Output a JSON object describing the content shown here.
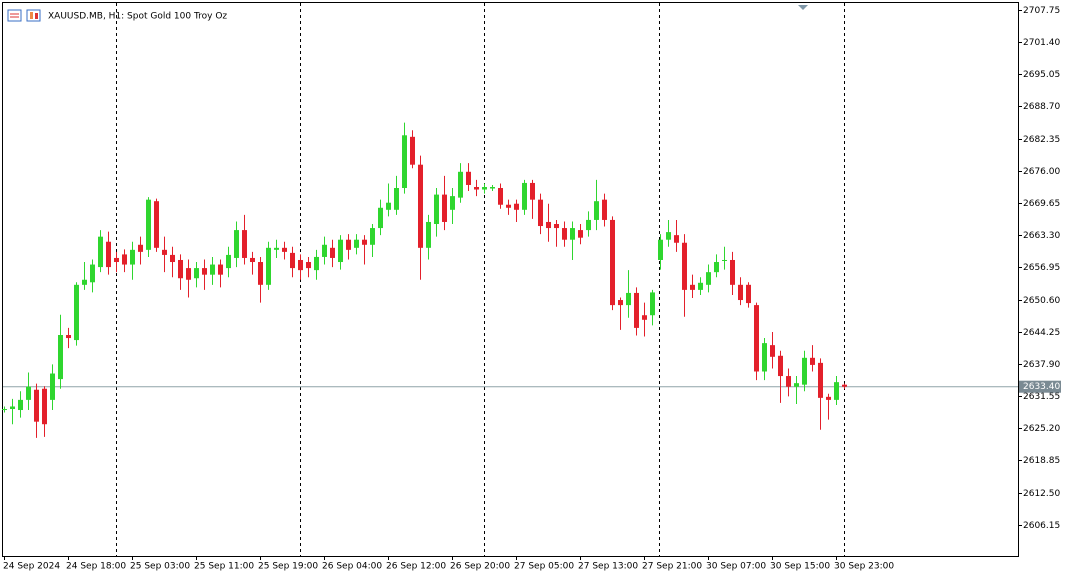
{
  "chart_data": {
    "type": "candlestick",
    "title": "XAUUSD.MB, H1:  Spot Gold 100 Troy Oz",
    "up_color": "#2fd62f",
    "down_color": "#e3202b",
    "grid": false,
    "ylim": [
      2600.0,
      2709.1
    ],
    "yticks": [
      2707.75,
      {
        "value": 2701.4,
        "label": "2701.40"
      },
      2695.05,
      {
        "value": 2688.7,
        "label": "2688.70"
      },
      2682.35,
      {
        "value": 2676.0,
        "label": "2676.00"
      },
      2669.65,
      {
        "value": 2663.3,
        "label": "2663.30"
      },
      2656.95,
      {
        "value": 2650.6,
        "label": "2650.60"
      },
      2644.25,
      {
        "value": 2637.9,
        "label": "2637.90"
      },
      2631.55,
      {
        "value": 2625.2,
        "label": "2625.20"
      },
      2618.85,
      {
        "value": 2612.5,
        "label": "2612.50"
      },
      2606.15
    ],
    "last_price": {
      "value": 2633.4,
      "label": "2633.40"
    },
    "categories": [
      "24 Sep 2024",
      null,
      null,
      null,
      null,
      null,
      null,
      null,
      "24 Sep 18:00",
      null,
      null,
      null,
      null,
      null,
      null,
      null,
      "25 Sep 03:00",
      null,
      null,
      null,
      null,
      null,
      null,
      null,
      "25 Sep 11:00",
      null,
      null,
      null,
      null,
      null,
      null,
      null,
      "25 Sep 19:00",
      null,
      null,
      null,
      null,
      null,
      null,
      null,
      "26 Sep 04:00",
      null,
      null,
      null,
      null,
      null,
      null,
      null,
      "26 Sep 12:00",
      null,
      null,
      null,
      null,
      null,
      null,
      null,
      "26 Sep 20:00",
      null,
      null,
      null,
      null,
      null,
      null,
      null,
      "27 Sep 05:00",
      null,
      null,
      null,
      null,
      null,
      null,
      null,
      "27 Sep 13:00",
      null,
      null,
      null,
      null,
      null,
      null,
      null,
      "27 Sep 21:00",
      null,
      null,
      null,
      null,
      null,
      null,
      null,
      "30 Sep 07:00",
      null,
      null,
      null,
      null,
      null,
      null,
      null,
      "30 Sep 15:00",
      null,
      null,
      null,
      null,
      null,
      null,
      null,
      "30 Sep 23:00",
      null
    ],
    "open": [
      2628.8,
      2629,
      2628.8,
      2630.8,
      2632.8,
      2633,
      2630.8,
      2634.9,
      2643.6,
      2642.6,
      2653.5,
      2654,
      2657,
      2662,
      2658.8,
      2659.5,
      2657.5,
      2661.4,
      2660.4,
      2670,
      2660.4,
      2659.4,
      2658.4,
      2656.8,
      2654.8,
      2656.8,
      2655.5,
      2657.5,
      2656.8,
      2658.8,
      2664.3,
      2658.8,
      2658,
      2653.5,
      2660.4,
      2660.8,
      2659.8,
      2658.4,
      2658,
      2656.4,
      2659,
      2660.8,
      2658,
      2662.4,
      2660.8,
      2662.4,
      2661.4,
      2664.7,
      2668.3,
      2668.3,
      2672.6,
      2682.7,
      2677.2,
      2660.8,
      2665.5,
      2671.3,
      2668.3,
      2670.7,
      2675.8,
      2672.8,
      2672.3,
      2672.5,
      2672.6,
      2669.3,
      2669.5,
      2668.3,
      2673.6,
      2670.3,
      2665.9,
      2665.5,
      2664.7,
      2662.4,
      2664.3,
      2664.3,
      2666.3,
      2670.3,
      2666.3,
      2650.5,
      2649.5,
      2651.9,
      2647.5,
      2647.5,
      2658.4,
      2662.4,
      2663.3,
      2661.8,
      2653.5,
      2652.5,
      2653.5,
      2656,
      2658.2,
      2658.4,
      2653.5,
      2653.5,
      2649.5,
      2636.4,
      2641.6,
      2639.5,
      2635.5,
      2633.4,
      2633.8,
      2639.1,
      2638.1,
      2631.4,
      2630.8,
      2633.8
    ],
    "high": [
      2629.5,
      2631,
      2632.5,
      2636.2,
      2634,
      2633.5,
      2637.8,
      2647.6,
      2645,
      2654,
      2658,
      2658.5,
      2664.3,
      2664,
      2660,
      2660.5,
      2662,
      2663,
      2670.8,
      2670.5,
      2663,
      2661,
      2659.5,
      2658.5,
      2658,
      2658.5,
      2659,
      2658.5,
      2661,
      2666,
      2667.3,
      2660,
      2659,
      2662,
      2662.4,
      2662,
      2661,
      2659.5,
      2659,
      2660.4,
      2663,
      2662.4,
      2663.3,
      2663.5,
      2663.5,
      2663.3,
      2665.5,
      2670.3,
      2673.5,
      2675,
      2685.5,
      2684,
      2679,
      2667.3,
      2672.6,
      2675,
      2672.6,
      2677.5,
      2677.5,
      2674.2,
      2673.5,
      2673.2,
      2673.5,
      2670.3,
      2670.3,
      2674.2,
      2674.2,
      2671.5,
      2669.5,
      2666.3,
      2666,
      2666,
      2665.5,
      2668,
      2674.2,
      2671.5,
      2667,
      2651,
      2656.4,
      2653,
      2650,
      2652.5,
      2663.5,
      2666.3,
      2666.3,
      2663.5,
      2655.5,
      2655,
      2657.5,
      2659.5,
      2661,
      2660,
      2655,
      2654,
      2650,
      2643,
      2644.2,
      2640.5,
      2637,
      2635.5,
      2640.5,
      2641.6,
      2639,
      2632,
      2635.5,
      2634
    ],
    "low": [
      2628.3,
      2626,
      2627.3,
      2628.8,
      2623.3,
      2623.5,
      2628.8,
      2633,
      2641,
      2641.5,
      2652.5,
      2652,
      2656,
      2655.5,
      2656,
      2656,
      2654.5,
      2657.5,
      2659,
      2660,
      2656,
      2655,
      2652.5,
      2651,
      2653,
      2652.5,
      2653.5,
      2653,
      2655,
      2657,
      2657.5,
      2655.5,
      2650,
      2652.5,
      2658.8,
      2658.5,
      2655,
      2654.5,
      2655,
      2654.5,
      2657.5,
      2657,
      2656.5,
      2658.5,
      2659.5,
      2657.5,
      2659,
      2663.3,
      2667,
      2667.3,
      2671.5,
      2676.5,
      2654.5,
      2658.5,
      2663,
      2664.3,
      2665.5,
      2669.7,
      2672,
      2671,
      2671.5,
      2672,
      2668.5,
      2667.3,
      2665.9,
      2667.3,
      2666.5,
      2663.5,
      2662,
      2661,
      2661,
      2658.4,
      2661.5,
      2663,
      2664.3,
      2665,
      2648.5,
      2644.6,
      2647,
      2643.5,
      2643.3,
      2645.5,
      2656.5,
      2661,
      2660,
      2647.2,
      2650.9,
      2651.5,
      2652,
      2655,
      2656.5,
      2651.5,
      2649.5,
      2649,
      2634.7,
      2634.7,
      2637,
      2630.2,
      2631.5,
      2630,
      2632.5,
      2636.4,
      2624.9,
      2626.9,
      2629.8,
      2633
    ],
    "close": [
      2629,
      2629.5,
      2630.8,
      2633.4,
      2626.5,
      2626,
      2636,
      2643.6,
      2643,
      2653.5,
      2654.5,
      2657.5,
      2663,
      2657,
      2658,
      2657.5,
      2660.4,
      2660,
      2670.3,
      2660.8,
      2659.4,
      2658,
      2654.8,
      2654.5,
      2656.8,
      2655.5,
      2657.5,
      2655.5,
      2659.4,
      2664.3,
      2658.8,
      2658,
      2653.5,
      2660.8,
      2660.8,
      2660,
      2656.8,
      2656.4,
      2656.8,
      2659,
      2661.4,
      2658.8,
      2662.4,
      2660.4,
      2662.4,
      2661.4,
      2664.7,
      2668.7,
      2669.7,
      2672.6,
      2683,
      2677.2,
      2660.8,
      2665.9,
      2671.3,
      2665.9,
      2671,
      2675.8,
      2673.2,
      2672.3,
      2672.8,
      2672.8,
      2669.3,
      2668.7,
      2668.3,
      2673.6,
      2670.3,
      2665.1,
      2664.7,
      2664.7,
      2662.4,
      2664.7,
      2662.8,
      2666.3,
      2670,
      2666.3,
      2649.5,
      2649.5,
      2651.9,
      2645,
      2646.6,
      2652,
      2662.4,
      2663.9,
      2661.8,
      2652.5,
      2652.5,
      2653.9,
      2656,
      2658,
      2658.4,
      2653.5,
      2650.5,
      2649.9,
      2636.4,
      2642,
      2639.3,
      2635.5,
      2633.4,
      2634.1,
      2639.1,
      2637.7,
      2631.2,
      2630.8,
      2634.3,
      2633.4
    ]
  }
}
